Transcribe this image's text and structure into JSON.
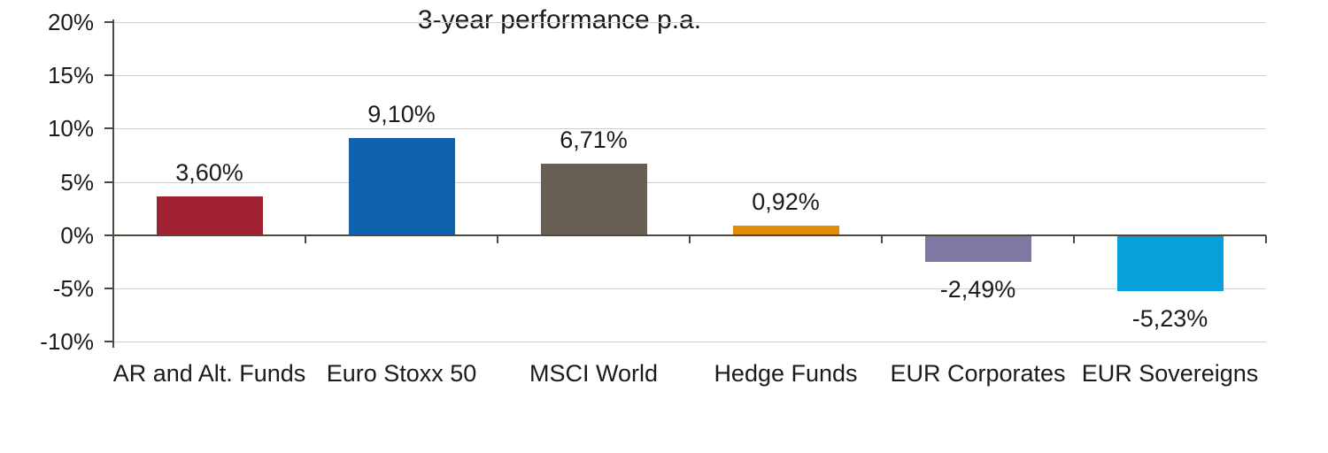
{
  "chart_data": {
    "type": "bar",
    "title": "3-year performance p.a.",
    "categories": [
      "AR and Alt. Funds",
      "Euro Stoxx 50",
      "MSCI World",
      "Hedge Funds",
      "EUR Corporates",
      "EUR Sovereigns"
    ],
    "values": [
      3.6,
      9.1,
      6.71,
      0.92,
      -2.49,
      -5.23
    ],
    "value_labels": [
      "3,60%",
      "9,10%",
      "6,71%",
      "0,92%",
      "-2,49%",
      "-5,23%"
    ],
    "bar_colors": [
      "#a02132",
      "#0f63ac",
      "#675f53",
      "#e28c0a",
      "#7e78a3",
      "#08a0da"
    ],
    "y_tick_labels": [
      "20%",
      "15%",
      "10%",
      "5%",
      "0%",
      "-5%",
      "-10%"
    ],
    "y_tick_values": [
      20,
      15,
      10,
      5,
      0,
      -5,
      -10
    ],
    "ylim": [
      -10,
      20
    ],
    "xlabel": "",
    "ylabel": "",
    "grid": "horizontal",
    "legend": "none",
    "colors": {
      "axis": "#4d4840",
      "gridline": "#cfcfcf",
      "text": "#1b1b1b",
      "background": "#ffffff"
    }
  }
}
